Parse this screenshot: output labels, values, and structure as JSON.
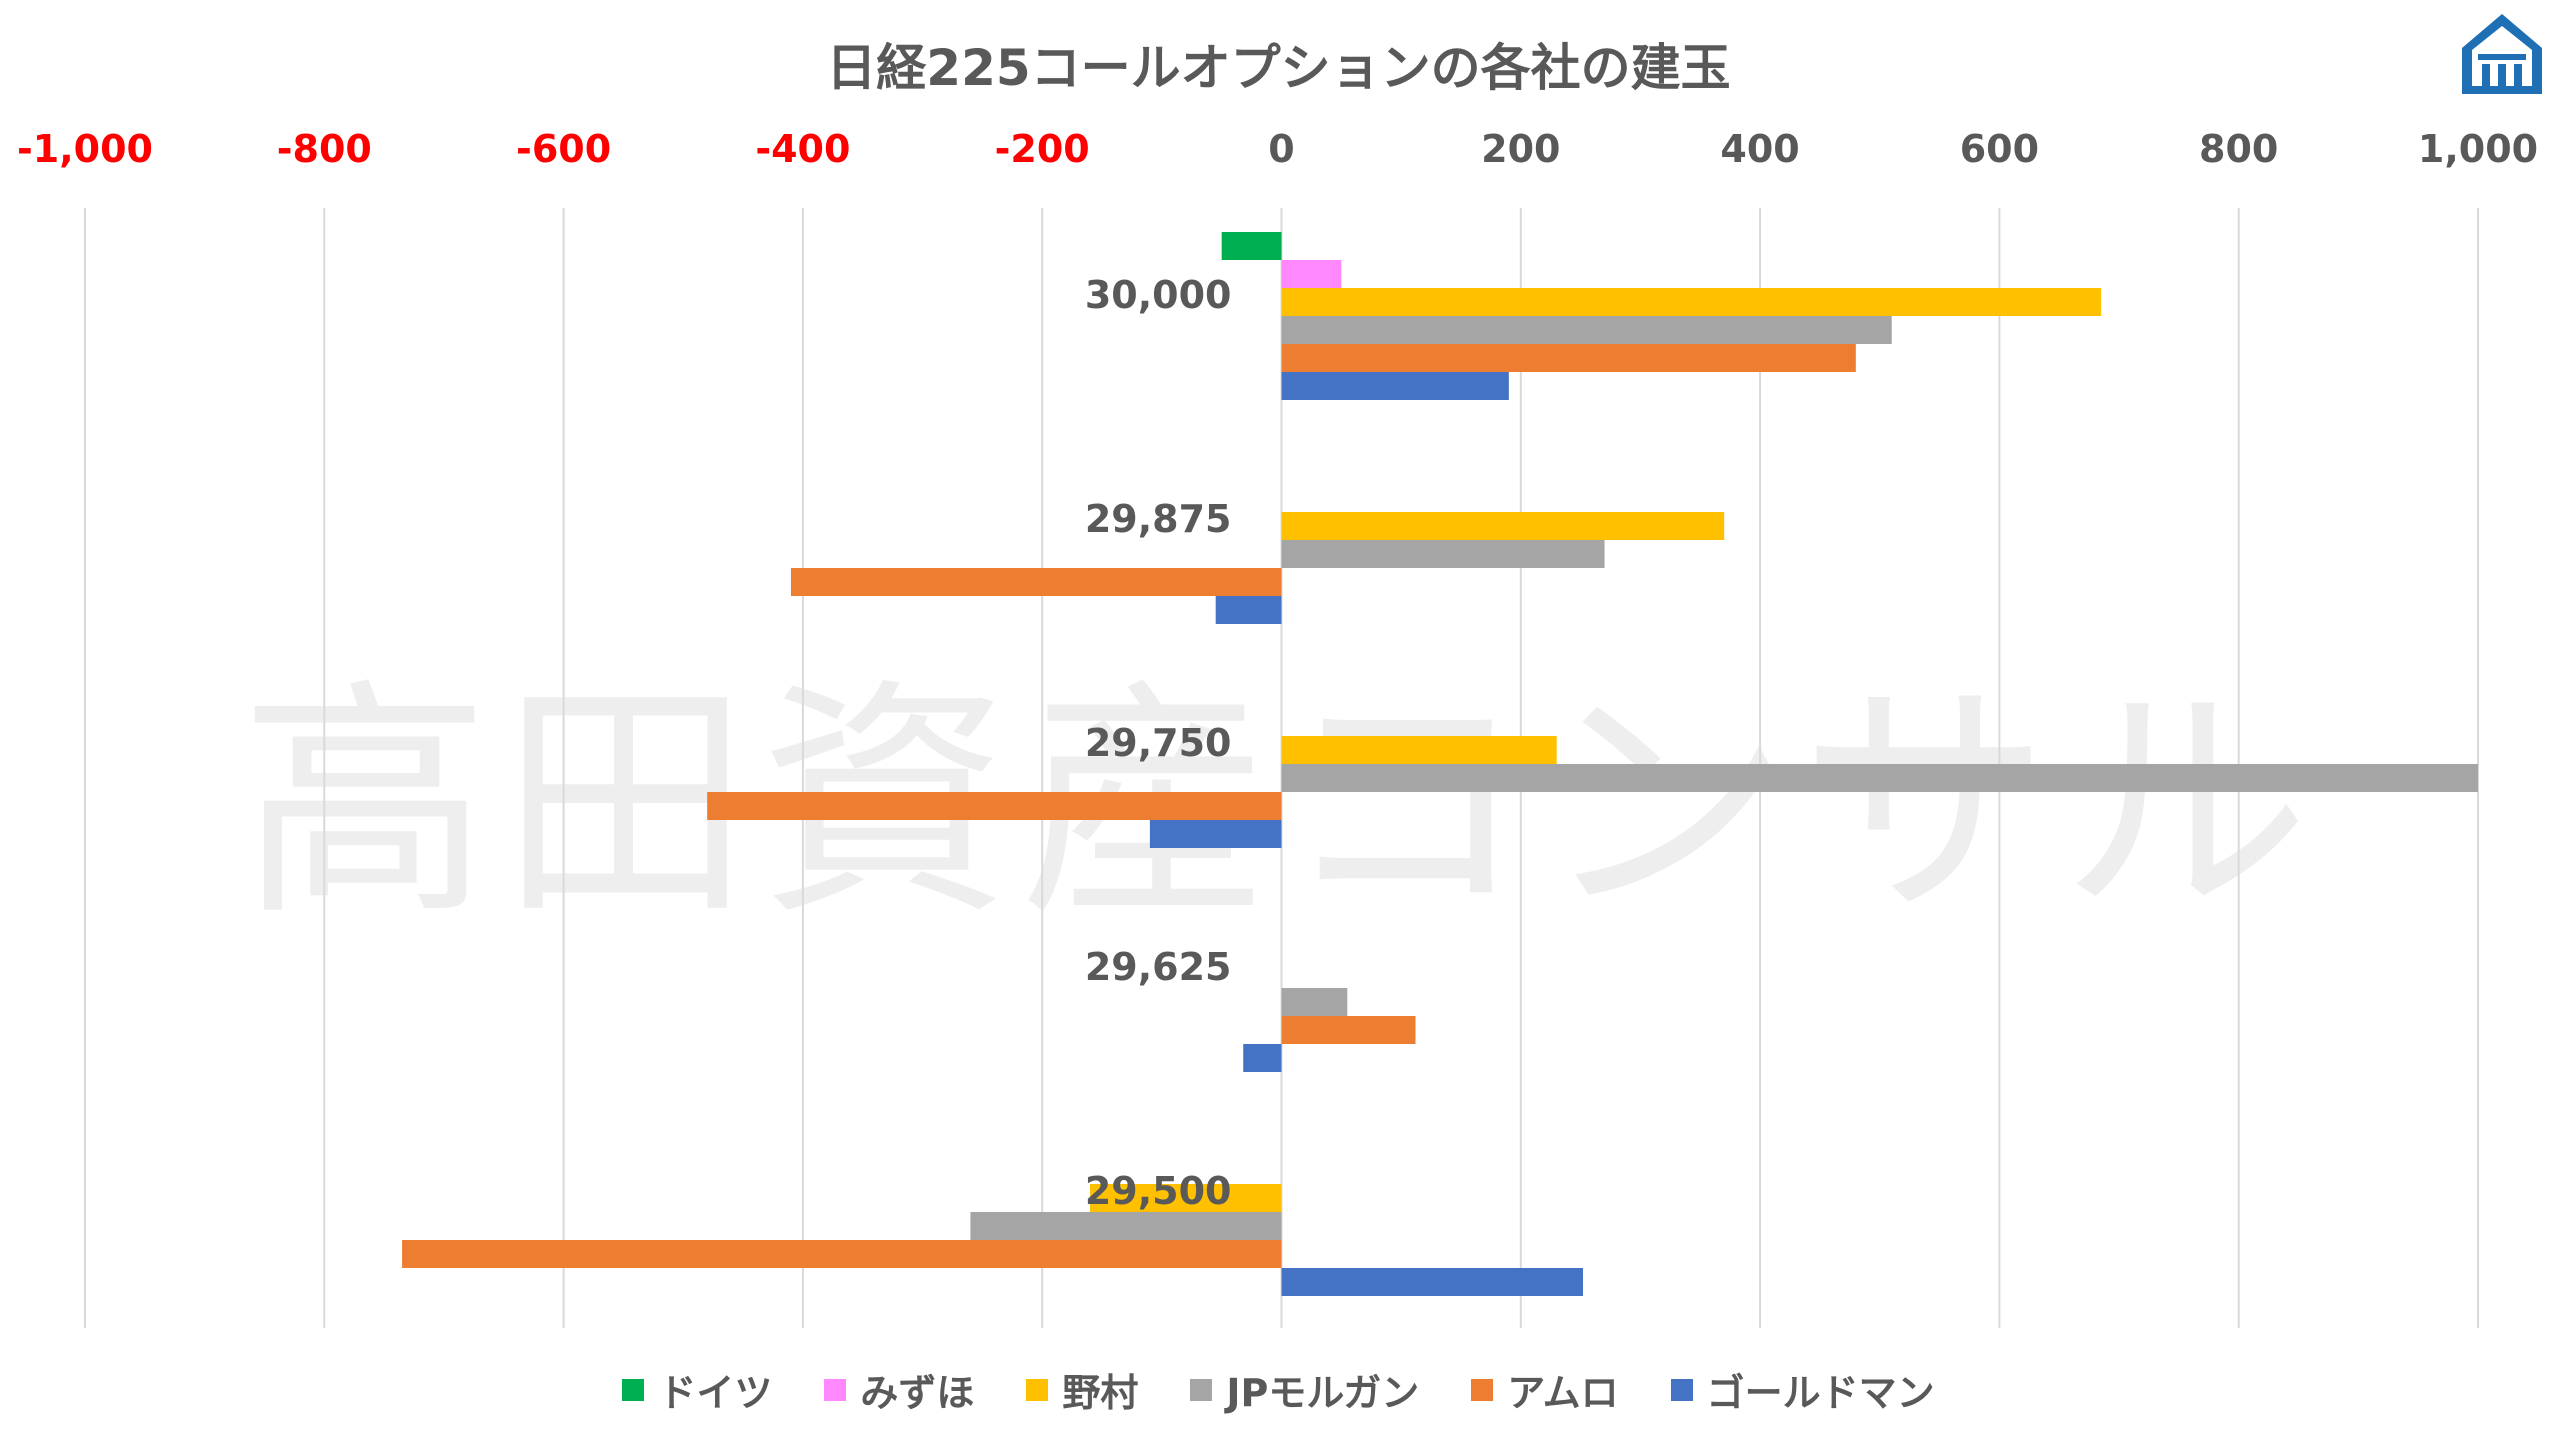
{
  "chart_data": {
    "type": "bar",
    "orientation": "horizontal",
    "title": "日経225コールオプションの各社の建玉",
    "watermark": "高田資産コンサル",
    "xlim": [
      -1000,
      1000
    ],
    "xticks": [
      -1000,
      -800,
      -600,
      -400,
      -200,
      0,
      200,
      400,
      600,
      800,
      1000
    ],
    "xtick_labels": [
      "-1,000",
      "-800",
      "-600",
      "-400",
      "-200",
      "0",
      "200",
      "400",
      "600",
      "800",
      "1,000"
    ],
    "negative_tick_color": "#ff0000",
    "positive_tick_color": "#595959",
    "grid": true,
    "legend_position": "bottom",
    "categories": [
      "30,000",
      "29,875",
      "29,750",
      "29,625",
      "29,500"
    ],
    "series": [
      {
        "name": "ドイツ",
        "color": "#00b050",
        "values": [
          -50,
          0,
          0,
          0,
          0
        ]
      },
      {
        "name": "みずほ",
        "color": "#ff88ff",
        "values": [
          50,
          0,
          0,
          0,
          0
        ]
      },
      {
        "name": "野村",
        "color": "#ffc000",
        "values": [
          685,
          370,
          230,
          0,
          -160
        ]
      },
      {
        "name": "JPモルガン",
        "color": "#a5a5a5",
        "values": [
          510,
          270,
          1000,
          55,
          -260
        ]
      },
      {
        "name": "アムロ",
        "color": "#ed7d31",
        "values": [
          480,
          -410,
          -480,
          112,
          -735
        ]
      },
      {
        "name": "ゴールドマン",
        "color": "#4472c4",
        "values": [
          190,
          -55,
          -110,
          -32,
          252
        ]
      }
    ]
  }
}
